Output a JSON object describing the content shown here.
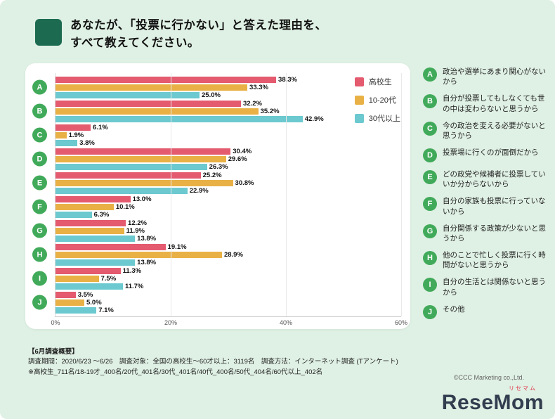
{
  "title": "あなたが、「投票に行かない」と答えた理由を、\nすべて教えてください。",
  "chart_data": {
    "type": "bar",
    "orientation": "horizontal",
    "categories": [
      "A",
      "B",
      "C",
      "D",
      "E",
      "F",
      "G",
      "H",
      "I",
      "J"
    ],
    "series": [
      {
        "name": "高校生",
        "color": "#e45a6f",
        "values": [
          38.3,
          32.2,
          6.1,
          30.4,
          25.2,
          13.0,
          12.2,
          19.1,
          11.3,
          3.5
        ]
      },
      {
        "name": "10-20代",
        "color": "#e9b145",
        "values": [
          33.3,
          35.2,
          1.9,
          29.6,
          30.8,
          10.1,
          11.9,
          28.9,
          7.5,
          5.0
        ]
      },
      {
        "name": "30代以上",
        "color": "#6bc9cf",
        "values": [
          25.0,
          42.9,
          3.8,
          26.3,
          22.9,
          6.3,
          13.8,
          13.8,
          11.7,
          7.1
        ]
      }
    ],
    "xlim": [
      0,
      60
    ],
    "xticks": [
      0,
      20,
      40,
      60
    ],
    "tick_suffix": "%",
    "legend_position": "top-right",
    "grid": true
  },
  "reasons": [
    {
      "key": "A",
      "label": "政治や選挙にあまり関心がないから"
    },
    {
      "key": "B",
      "label": "自分が投票してもしなくても世の中は変わらないと思うから"
    },
    {
      "key": "C",
      "label": "今の政治を変える必要がないと思うから"
    },
    {
      "key": "D",
      "label": "投票場に行くのが面倒だから"
    },
    {
      "key": "E",
      "label": "どの政党や候補者に投票していいか分からないから"
    },
    {
      "key": "F",
      "label": "自分の家族も投票に行っていないから"
    },
    {
      "key": "G",
      "label": "自分関係する政策が少ないと思うから"
    },
    {
      "key": "H",
      "label": "他のことで忙しく投票に行く時間がないと思うから"
    },
    {
      "key": "I",
      "label": "自分の生活とは関係ないと思うから"
    },
    {
      "key": "J",
      "label": "その他"
    }
  ],
  "survey": {
    "heading": "【6月調査概要】",
    "line1": "調査期間：2020/6/23 ～6/26　調査対象：全国の高校生～60才以上：3119名　調査方法：インターネット調査 (Tアンケート)",
    "line2": "※高校生_711名/18-19才_400名/20代_401名/30代_401名/40代_400名/50代_404名/60代以上_402名"
  },
  "footer": {
    "copyright": "©CCC Marketing co.,Ltd.",
    "logo_text": "ReseMom",
    "logo_furigana": "リセマム"
  },
  "colors": {
    "background": "#dff0e4",
    "title_square": "#1c6b51",
    "badge_green": "#41aa5a",
    "series_pink": "#e45a6f",
    "series_yellow": "#e9b145",
    "series_teal": "#6bc9cf"
  }
}
